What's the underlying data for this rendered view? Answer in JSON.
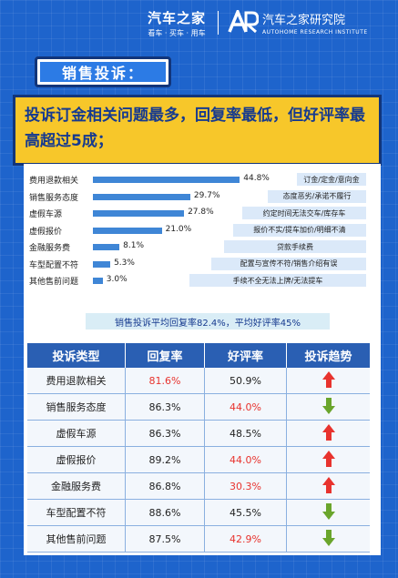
{
  "brand": {
    "logo_main": "汽车之家",
    "logo_sub": "看车 · 买车 · 用车",
    "institute_name": "汽车之家研究院",
    "institute_sub": "AUTOHOME RESEARCH INSTITUTE"
  },
  "section_tag": "销售投诉：",
  "headline": "投诉订金相关问题最多，回复率最低，但好评率最高超过5成；",
  "chart_data": {
    "type": "bar",
    "categories": [
      "费用退款相关",
      "销售服务态度",
      "虚假车源",
      "虚假报价",
      "金融服务费",
      "车型配置不符",
      "其他售前问题"
    ],
    "values": [
      44.8,
      29.7,
      27.8,
      21.0,
      8.1,
      5.3,
      3.0
    ],
    "value_labels": [
      "44.8%",
      "29.7%",
      "27.8%",
      "21.0%",
      "8.1%",
      "5.3%",
      "3.0%"
    ],
    "details": [
      "订金/定金/意向金",
      "态度恶劣/承诺不履行",
      "约定时间无法交车/库存车",
      "报价不实/提车加价/明细不清",
      "贷款手续费",
      "配置与宣传不符/销售介绍有误",
      "手续不全无法上牌/无法提车"
    ],
    "title": "",
    "xlabel": "",
    "ylabel": "",
    "xlim": [
      0,
      100
    ]
  },
  "summary": "销售投诉平均回复率82.4%，平均好评率45%",
  "table": {
    "headers": [
      "投诉类型",
      "回复率",
      "好评率",
      "投诉趋势"
    ],
    "rows": [
      {
        "type": "费用退款相关",
        "reply": "81.6%",
        "reply_red": true,
        "praise": "50.9%",
        "praise_red": false,
        "trend": "up"
      },
      {
        "type": "销售服务态度",
        "reply": "86.3%",
        "reply_red": false,
        "praise": "44.0%",
        "praise_red": true,
        "trend": "down"
      },
      {
        "type": "虚假车源",
        "reply": "86.3%",
        "reply_red": false,
        "praise": "48.5%",
        "praise_red": false,
        "trend": "up"
      },
      {
        "type": "虚假报价",
        "reply": "89.2%",
        "reply_red": false,
        "praise": "44.0%",
        "praise_red": true,
        "trend": "up"
      },
      {
        "type": "金融服务费",
        "reply": "86.8%",
        "reply_red": false,
        "praise": "30.3%",
        "praise_red": true,
        "trend": "up"
      },
      {
        "type": "车型配置不符",
        "reply": "88.6%",
        "reply_red": false,
        "praise": "45.5%",
        "praise_red": false,
        "trend": "down"
      },
      {
        "type": "其他售前问题",
        "reply": "87.5%",
        "reply_red": false,
        "praise": "42.9%",
        "praise_red": true,
        "trend": "down"
      }
    ]
  },
  "colors": {
    "background": "#1e64cc",
    "highlight": "#f7c72a",
    "bar": "#3f86d6",
    "up_arrow": "#e8332e",
    "down_arrow": "#6aa52c",
    "warning_text": "#e8332e"
  }
}
